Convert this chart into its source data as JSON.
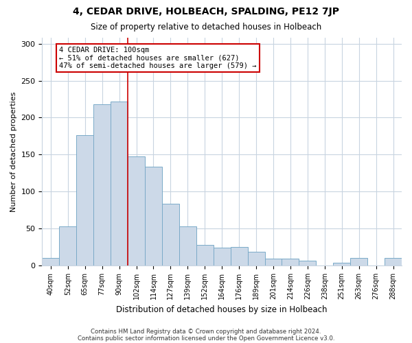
{
  "title": "4, CEDAR DRIVE, HOLBEACH, SPALDING, PE12 7JP",
  "subtitle": "Size of property relative to detached houses in Holbeach",
  "xlabel": "Distribution of detached houses by size in Holbeach",
  "ylabel": "Number of detached properties",
  "bar_labels": [
    "40sqm",
    "52sqm",
    "65sqm",
    "77sqm",
    "90sqm",
    "102sqm",
    "114sqm",
    "127sqm",
    "139sqm",
    "152sqm",
    "164sqm",
    "176sqm",
    "189sqm",
    "201sqm",
    "214sqm",
    "226sqm",
    "238sqm",
    "251sqm",
    "263sqm",
    "276sqm",
    "288sqm"
  ],
  "bar_values": [
    10,
    53,
    176,
    218,
    222,
    148,
    134,
    84,
    53,
    28,
    24,
    25,
    19,
    9,
    9,
    7,
    0,
    4,
    10,
    0,
    10
  ],
  "bar_color": "#ccd9e8",
  "bar_edge_color": "#7aaac8",
  "vline_x_index": 5,
  "vline_color": "#cc0000",
  "annotation_lines": [
    "4 CEDAR DRIVE: 100sqm",
    "← 51% of detached houses are smaller (627)",
    "47% of semi-detached houses are larger (579) →"
  ],
  "annotation_box_color": "#ffffff",
  "annotation_box_edge_color": "#cc0000",
  "ylim": [
    0,
    308
  ],
  "yticks": [
    0,
    50,
    100,
    150,
    200,
    250,
    300
  ],
  "footer_lines": [
    "Contains HM Land Registry data © Crown copyright and database right 2024.",
    "Contains public sector information licensed under the Open Government Licence v3.0."
  ],
  "bg_color": "#ffffff",
  "plot_bg_color": "#ffffff",
  "grid_color": "#c8d4e0"
}
